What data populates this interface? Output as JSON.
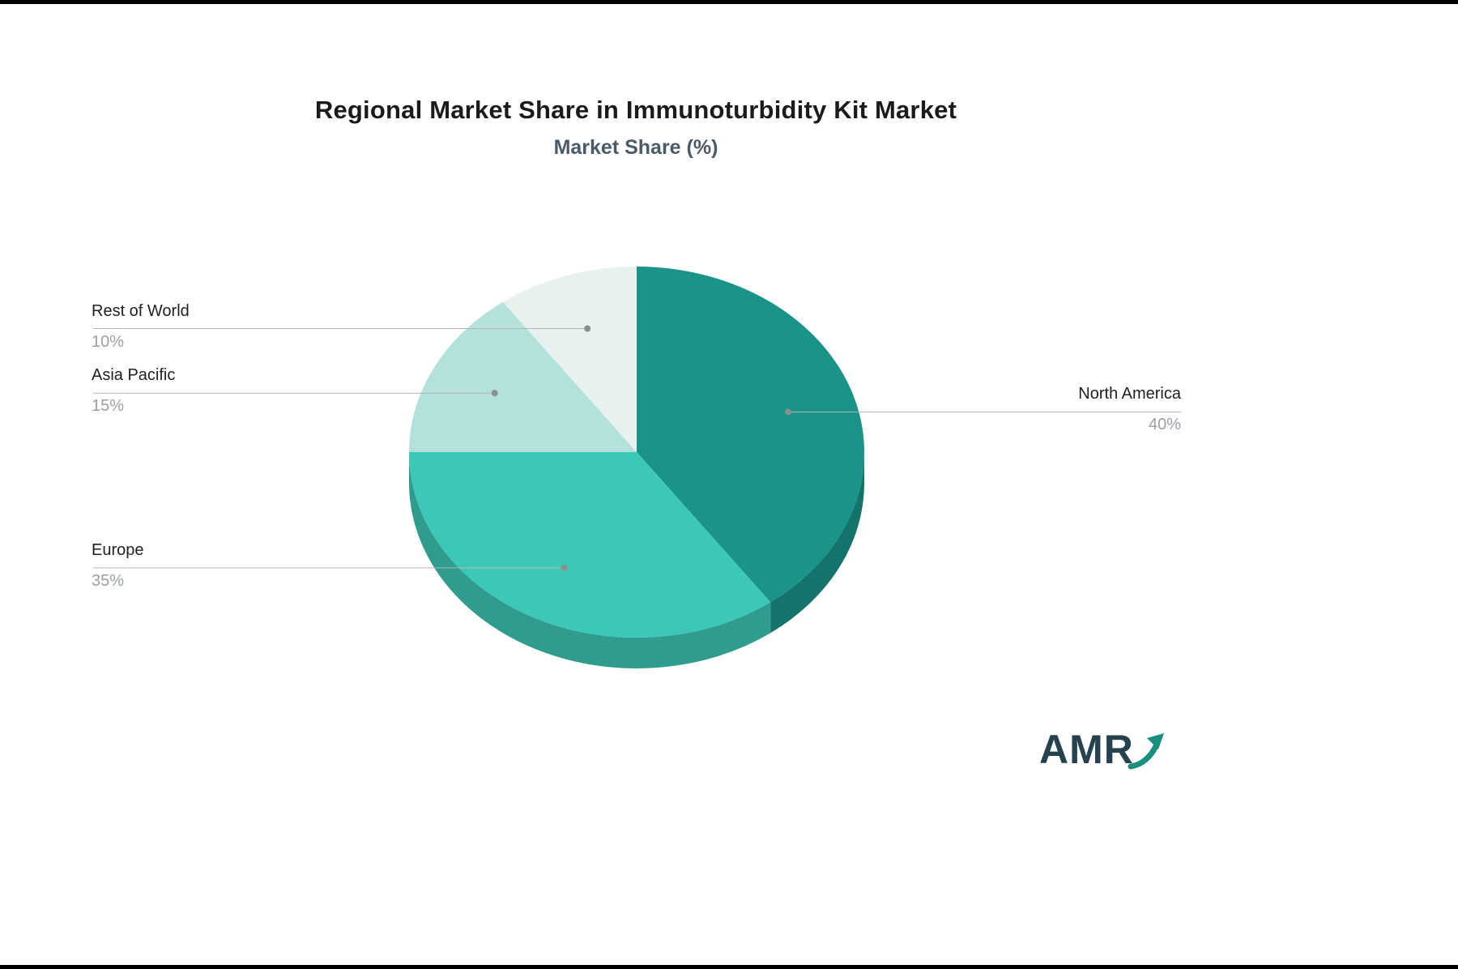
{
  "chart_data": {
    "type": "pie",
    "style": "3d",
    "title": "Regional Market Share in Immunoturbidity Kit Market",
    "subtitle": "Market Share (%)",
    "unit": "%",
    "categories": [
      "North America",
      "Europe",
      "Asia Pacific",
      "Rest of World"
    ],
    "values": [
      40,
      35,
      15,
      10
    ],
    "colors": [
      "#1a9488",
      "#3cc8b6",
      "#b3e1db",
      "#e7f2f0"
    ],
    "start_angle_deg": 0,
    "direction": "clockwise",
    "legend_position": "none",
    "labels": [
      {
        "name": "North America",
        "pct": "40%",
        "side": "right"
      },
      {
        "name": "Europe",
        "pct": "35%",
        "side": "left"
      },
      {
        "name": "Asia Pacific",
        "pct": "15%",
        "side": "left"
      },
      {
        "name": "Rest of World",
        "pct": "10%",
        "side": "left"
      }
    ]
  },
  "branding": {
    "logo_text": "AMR",
    "logo_color": "#25424e",
    "arrow_color": "#1a8f80"
  }
}
